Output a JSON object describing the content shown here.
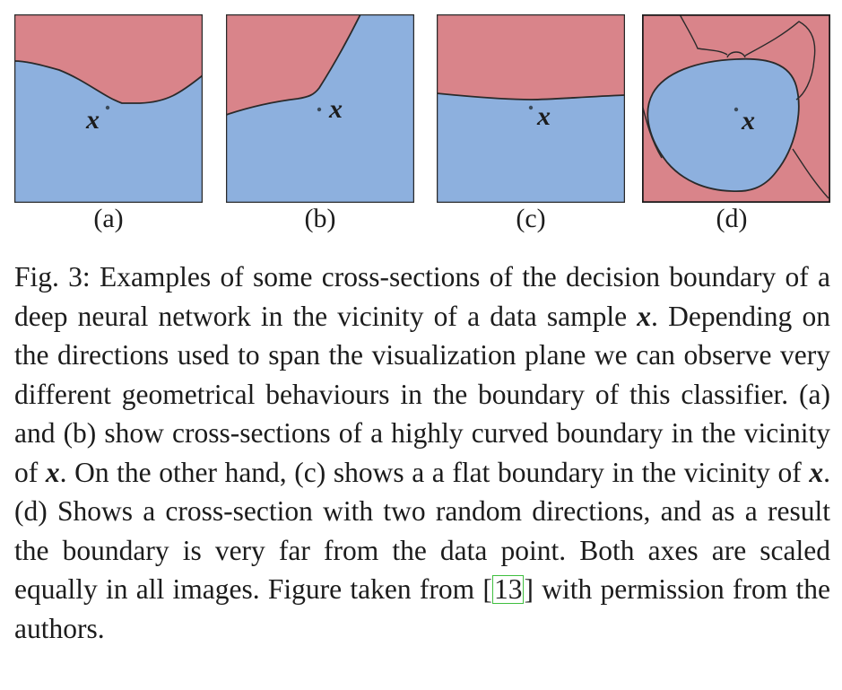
{
  "figure": {
    "colors": {
      "region_top": "#d9848a",
      "region_bottom": "#8db0de",
      "boundary": "#2a2a2a",
      "point": "#3a4a5a"
    },
    "panels": [
      {
        "label": "(a)",
        "point_label": "x"
      },
      {
        "label": "(b)",
        "point_label": "x"
      },
      {
        "label": "(c)",
        "point_label": "x"
      },
      {
        "label": "(d)",
        "point_label": "x"
      }
    ]
  },
  "caption": {
    "prefix": "Fig. 3: Examples of some cross-sections of the decision boundary of a deep neural network in the vicinity of a data sample ",
    "math1": "x",
    "part2": ". Depending on the directions used to span the visualization plane we can observe very different geometrical behaviours in the boundary of this classifier. (a) and (b) show cross-sections of a highly curved boundary in the vicinity of ",
    "math2": "x",
    "part3": ". On the other hand, (c) shows a a flat boundary in the vicinity of ",
    "math3": "x",
    "part4": ". (d) Shows a cross-section with two random directions, and as a result the boundary is very far from the data point. Both axes are scaled equally in all images. Figure taken from [",
    "citation": "13",
    "part5": "] with permission from the authors."
  }
}
